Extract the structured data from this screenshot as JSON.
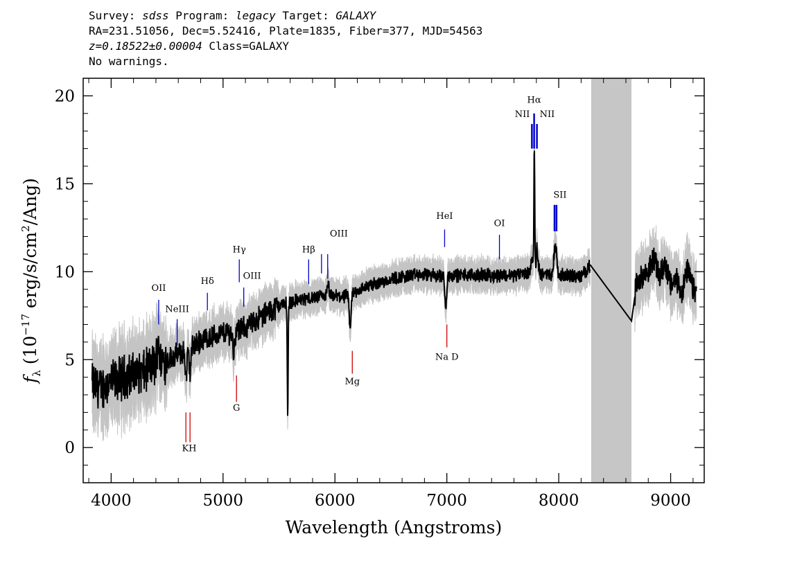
{
  "header": {
    "line1": {
      "survey_label": "Survey: ",
      "survey": "sdss",
      "program_label": " Program: ",
      "program": "legacy",
      "target_label": " Target: ",
      "target": "GALAXY"
    },
    "line2": "RA=231.51056, Dec=5.52416, Plate=1835, Fiber=377, MJD=54563",
    "line3": {
      "z": "z=0.18522±0.00004",
      "class": " Class=GALAXY"
    },
    "line4": "No warnings."
  },
  "chart_data": {
    "type": "line",
    "xlabel": "Wavelength (Angstroms)",
    "ylabel": "f_λ (10^-17 erg/s/cm^2/Ang)",
    "ylabel_parts": {
      "f": "f",
      "sub": "λ",
      "pre": " (10",
      "exp1": "−17",
      "mid": " erg/s/cm",
      "exp2": "2",
      "post": "/Ang)"
    },
    "xlim": [
      3750,
      9300
    ],
    "ylim": [
      -2,
      21
    ],
    "xticks": [
      4000,
      5000,
      6000,
      7000,
      8000,
      9000
    ],
    "yticks": [
      0,
      5,
      10,
      15,
      20
    ],
    "masked_region": [
      8290,
      8650
    ],
    "colors": {
      "flux": "#000000",
      "error_band": "#c4c4c4",
      "emission": "#0000cc",
      "absorption": "#cc0000",
      "mask": "#c6c6c6"
    },
    "continuum": [
      [
        3830,
        3.6
      ],
      [
        3900,
        3.4
      ],
      [
        4000,
        3.7
      ],
      [
        4100,
        4.0
      ],
      [
        4200,
        4.2
      ],
      [
        4300,
        4.3
      ],
      [
        4400,
        4.8
      ],
      [
        4500,
        5.0
      ],
      [
        4600,
        5.3
      ],
      [
        4700,
        5.6
      ],
      [
        4800,
        6.1
      ],
      [
        4900,
        6.3
      ],
      [
        5000,
        6.5
      ],
      [
        5100,
        6.6
      ],
      [
        5200,
        6.8
      ],
      [
        5300,
        7.3
      ],
      [
        5400,
        7.7
      ],
      [
        5500,
        8.1
      ],
      [
        5600,
        8.3
      ],
      [
        5700,
        8.4
      ],
      [
        5800,
        8.5
      ],
      [
        5900,
        8.6
      ],
      [
        6000,
        8.6
      ],
      [
        6100,
        8.6
      ],
      [
        6200,
        8.9
      ],
      [
        6300,
        9.2
      ],
      [
        6400,
        9.4
      ],
      [
        6500,
        9.6
      ],
      [
        6600,
        9.7
      ],
      [
        6700,
        9.8
      ],
      [
        6800,
        9.8
      ],
      [
        6900,
        9.8
      ],
      [
        7000,
        9.8
      ],
      [
        7100,
        9.8
      ],
      [
        7200,
        9.8
      ],
      [
        7300,
        9.8
      ],
      [
        7400,
        9.8
      ],
      [
        7500,
        9.8
      ],
      [
        7600,
        9.8
      ],
      [
        7700,
        9.9
      ],
      [
        7800,
        10.0
      ],
      [
        7900,
        9.8
      ],
      [
        8000,
        9.8
      ],
      [
        8100,
        9.8
      ],
      [
        8200,
        9.7
      ],
      [
        8280,
        10.4
      ]
    ],
    "features": [
      {
        "wave": 4420,
        "kind": "emission",
        "depth": 1.6
      },
      {
        "wave": 4670,
        "kind": "absorption",
        "depth": 1.5
      },
      {
        "wave": 4705,
        "kind": "absorption",
        "depth": 1.3
      },
      {
        "wave": 5095,
        "kind": "absorption",
        "depth": 1.2
      },
      {
        "wave": 5578,
        "kind": "absorption",
        "depth": 6.5
      },
      {
        "wave": 5940,
        "kind": "emission",
        "depth": 0.6
      },
      {
        "wave": 6135,
        "kind": "absorption",
        "depth": 2.0
      },
      {
        "wave": 6990,
        "kind": "absorption",
        "depth": 2.0
      },
      {
        "wave": 7760,
        "kind": "emission",
        "depth": 0.9
      },
      {
        "wave": 7782,
        "kind": "emission",
        "depth": 7.2
      },
      {
        "wave": 7807,
        "kind": "emission",
        "depth": 1.3
      },
      {
        "wave": 7962,
        "kind": "emission",
        "depth": 1.4
      },
      {
        "wave": 7978,
        "kind": "emission",
        "depth": 1.3
      }
    ],
    "after_mask": [
      [
        8650,
        7.2
      ],
      [
        8700,
        9.5
      ],
      [
        8800,
        10.0
      ],
      [
        8850,
        10.8
      ],
      [
        8900,
        9.7
      ],
      [
        8950,
        10.5
      ],
      [
        9000,
        9.2
      ],
      [
        9050,
        9.6
      ],
      [
        9100,
        8.8
      ],
      [
        9150,
        10.1
      ],
      [
        9200,
        9.0
      ],
      [
        9230,
        8.8
      ]
    ],
    "line_markers": [
      {
        "label": "OII",
        "wave": 4425,
        "kind": "emission",
        "y_top": 8.4,
        "y_bottom": 7.0,
        "label_y": 8.9
      },
      {
        "label": "NeIII",
        "wave": 4590,
        "kind": "emission",
        "y_top": 7.3,
        "y_bottom": 5.8,
        "label_y": 7.7
      },
      {
        "label": "Hδ",
        "wave": 4860,
        "kind": "emission",
        "y_top": 8.8,
        "y_bottom": 7.8,
        "label_y": 9.3
      },
      {
        "label": "Hγ",
        "wave": 5145,
        "kind": "emission",
        "y_top": 10.7,
        "y_bottom": 9.4,
        "label_y": 11.1
      },
      {
        "label": "OIII",
        "wave": 5185,
        "kind": "emission",
        "y_top": 9.1,
        "y_bottom": 8.0,
        "label_y": 9.6
      },
      {
        "label": "Hβ",
        "wave": 5765,
        "kind": "emission",
        "y_top": 10.7,
        "y_bottom": 9.3,
        "label_y": 11.1
      },
      {
        "label": "OIII",
        "wave": 5880,
        "kind": "emission",
        "y_top": 11.0,
        "y_bottom": 9.9,
        "label_y": 12.0
      },
      {
        "label": "OIII",
        "wave": 5935,
        "kind": "emission",
        "y_top": 11.0,
        "y_bottom": 9.6,
        "label_y": null
      },
      {
        "label": "HeI",
        "wave": 6980,
        "kind": "emission",
        "y_top": 12.4,
        "y_bottom": 11.4,
        "label_y": 13.0
      },
      {
        "label": "OI",
        "wave": 7470,
        "kind": "emission",
        "y_top": 12.1,
        "y_bottom": 10.7,
        "label_y": 12.6
      },
      {
        "label": "NII",
        "wave": 7760,
        "kind": "emission",
        "y_top": 18.4,
        "y_bottom": 17.0,
        "label_y": 18.8
      },
      {
        "label": "Hα",
        "wave": 7780,
        "kind": "emission",
        "y_top": 19.0,
        "y_bottom": 17.0,
        "label_y": 19.6
      },
      {
        "label": "NII",
        "wave": 7805,
        "kind": "emission",
        "y_top": 18.4,
        "y_bottom": 17.0,
        "label_y": 18.8
      },
      {
        "label": "SII",
        "wave": 7962,
        "kind": "emission",
        "y_top": 13.8,
        "y_bottom": 12.3,
        "label_y": 14.2
      },
      {
        "label": "SII",
        "wave": 7980,
        "kind": "emission",
        "y_top": 13.8,
        "y_bottom": 12.3,
        "label_y": null
      },
      {
        "label": "K",
        "wave": 4668,
        "kind": "absorption",
        "y_top": 2.0,
        "y_bottom": 0.3,
        "label_y": -0.2
      },
      {
        "label": "H",
        "wave": 4705,
        "kind": "absorption",
        "y_top": 2.0,
        "y_bottom": 0.3,
        "label_y": -0.2
      },
      {
        "label": "G",
        "wave": 5120,
        "kind": "absorption",
        "y_top": 4.1,
        "y_bottom": 2.6,
        "label_y": 2.1
      },
      {
        "label": "Mg",
        "wave": 6155,
        "kind": "absorption",
        "y_top": 5.5,
        "y_bottom": 4.2,
        "label_y": 3.6
      },
      {
        "label": "Na D",
        "wave": 7000,
        "kind": "absorption",
        "y_top": 7.0,
        "y_bottom": 5.7,
        "label_y": 5.0
      }
    ]
  }
}
